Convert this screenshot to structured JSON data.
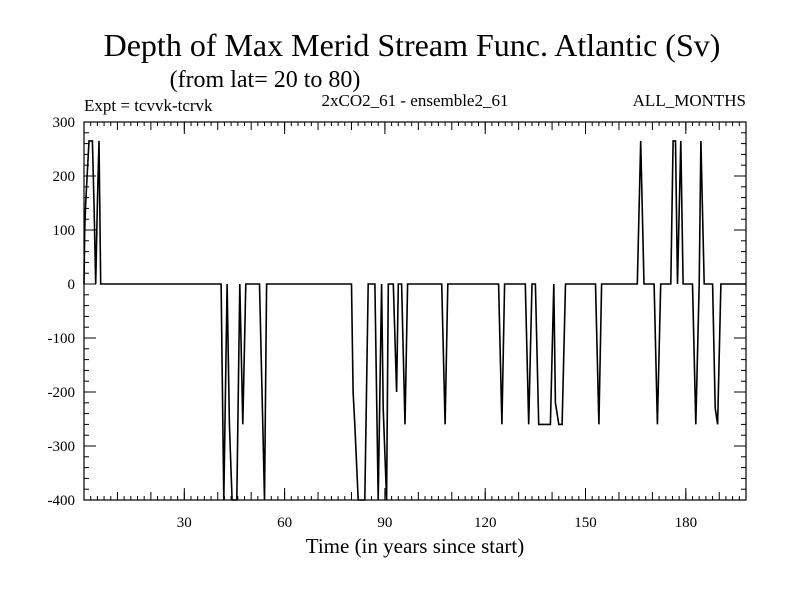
{
  "header": {
    "title": "Depth of Max Merid Stream Func. Atlantic (Sv)",
    "subtitle": "(from lat= 20 to 80)",
    "expt": "Expt = tcvvk-tcrvk",
    "run": "2xCO2_61 - ensemble2_61",
    "months": "ALL_MONTHS"
  },
  "chart_data": {
    "type": "line",
    "xlabel": "Time (in years since start)",
    "ylabel": "",
    "xlim": [
      0,
      198
    ],
    "ylim": [
      -400,
      300
    ],
    "x_ticks": [
      30,
      60,
      90,
      120,
      150,
      180
    ],
    "y_ticks": [
      300,
      200,
      100,
      0,
      -100,
      -200,
      -300,
      -400
    ],
    "grid": false,
    "series": [
      {
        "points": [
          [
            0,
            0
          ],
          [
            0.2,
            100
          ],
          [
            0.5,
            150
          ],
          [
            1.5,
            265
          ],
          [
            2.5,
            265
          ],
          [
            3,
            150
          ],
          [
            3.5,
            0
          ],
          [
            4,
            150
          ],
          [
            4.5,
            265
          ],
          [
            5,
            0
          ],
          [
            41,
            0
          ],
          [
            41.8,
            -400
          ],
          [
            42.8,
            0
          ],
          [
            43.5,
            -260
          ],
          [
            44.3,
            -400
          ],
          [
            45.7,
            -400
          ],
          [
            46.6,
            0
          ],
          [
            47.5,
            -260
          ],
          [
            48.4,
            0
          ],
          [
            52.5,
            0
          ],
          [
            53.5,
            -270
          ],
          [
            54,
            -400
          ],
          [
            54.6,
            0
          ],
          [
            80,
            0
          ],
          [
            80.5,
            -200
          ],
          [
            81,
            -260
          ],
          [
            82,
            -400
          ],
          [
            84,
            -400
          ],
          [
            85,
            0
          ],
          [
            87,
            0
          ],
          [
            88,
            -400
          ],
          [
            89,
            0
          ],
          [
            89.5,
            -230
          ],
          [
            90.5,
            -400
          ],
          [
            91,
            0
          ],
          [
            92.5,
            0
          ],
          [
            93.5,
            -200
          ],
          [
            94,
            0
          ],
          [
            95,
            0
          ],
          [
            96,
            -260
          ],
          [
            96.8,
            0
          ],
          [
            98.5,
            0
          ],
          [
            107,
            0
          ],
          [
            108,
            -260
          ],
          [
            108.8,
            0
          ],
          [
            124,
            0
          ],
          [
            125,
            -260
          ],
          [
            125.8,
            0
          ],
          [
            127,
            0
          ],
          [
            132,
            0
          ],
          [
            133,
            -260
          ],
          [
            134,
            0
          ],
          [
            135,
            0
          ],
          [
            136,
            -260
          ],
          [
            139.5,
            -260
          ],
          [
            140.5,
            0
          ],
          [
            141,
            -220
          ],
          [
            142,
            -260
          ],
          [
            143,
            -260
          ],
          [
            144,
            0
          ],
          [
            145,
            0
          ],
          [
            153,
            0
          ],
          [
            154,
            -260
          ],
          [
            154.8,
            0
          ],
          [
            160,
            0
          ],
          [
            165.5,
            0
          ],
          [
            166.5,
            265
          ],
          [
            167.5,
            0
          ],
          [
            170.5,
            0
          ],
          [
            171.5,
            -260
          ],
          [
            172.5,
            0
          ],
          [
            175.5,
            0
          ],
          [
            176.2,
            265
          ],
          [
            176.9,
            265
          ],
          [
            177.5,
            0
          ],
          [
            178.5,
            265
          ],
          [
            179.2,
            0
          ],
          [
            182,
            0
          ],
          [
            183,
            -260
          ],
          [
            184,
            0
          ],
          [
            184.5,
            265
          ],
          [
            185.5,
            0
          ],
          [
            188,
            0
          ],
          [
            188.8,
            -230
          ],
          [
            189.5,
            -260
          ],
          [
            190.5,
            0
          ],
          [
            198,
            0
          ]
        ]
      }
    ]
  }
}
